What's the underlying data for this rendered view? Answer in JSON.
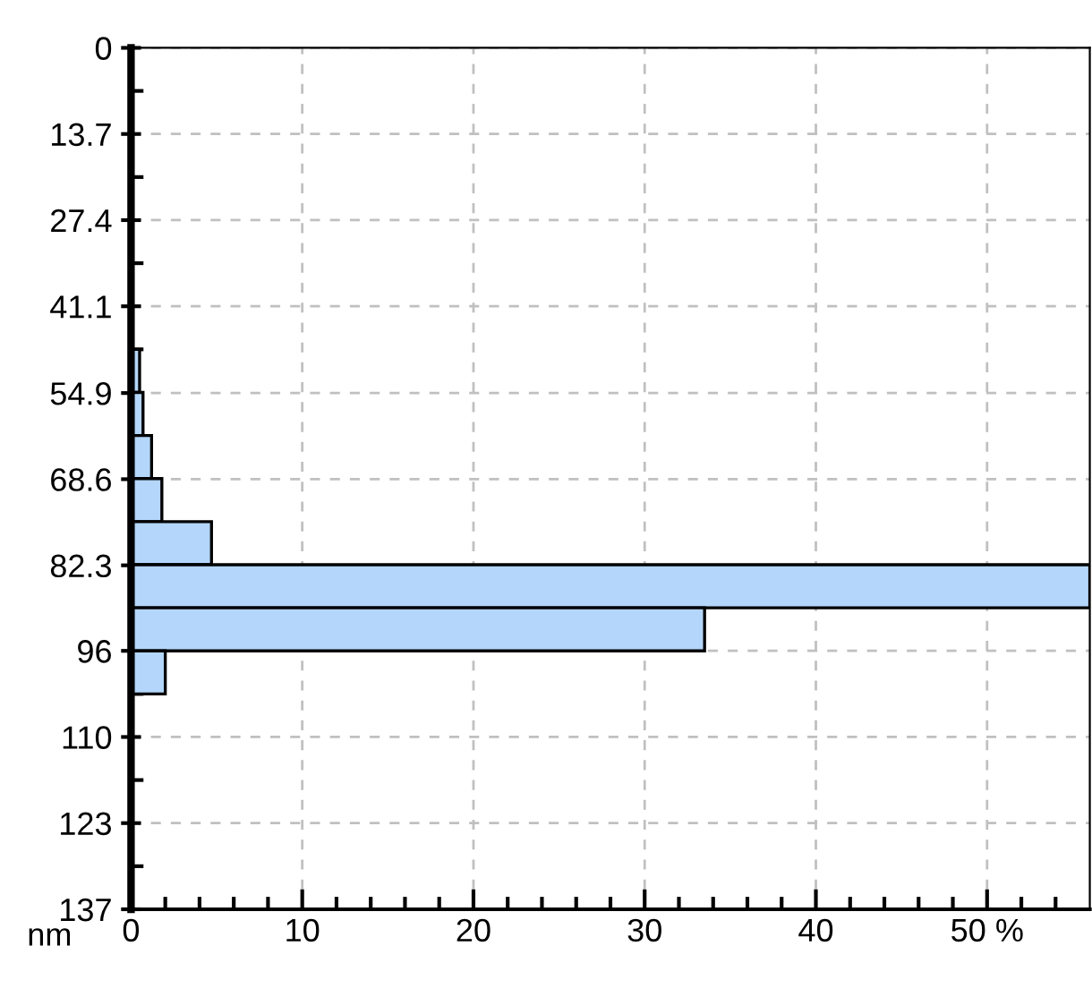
{
  "chart_data": {
    "type": "histogram",
    "orientation": "horizontal",
    "ylabel": "nm",
    "bins": [
      0,
      6.85,
      13.7,
      20.55,
      27.4,
      34.25,
      41.1,
      47.95,
      54.8,
      61.65,
      68.5,
      75.35,
      82.2,
      89.05,
      95.9,
      102.75,
      109.6,
      116.45,
      123.3,
      130.15,
      137
    ],
    "values": [
      null,
      null,
      null,
      null,
      null,
      null,
      null,
      0.5,
      0.7,
      1.2,
      1.8,
      4.7,
      56,
      33.5,
      2.0,
      null,
      null,
      null,
      null,
      null
    ],
    "color": "#b3d6fa",
    "xlim": [
      0,
      56
    ],
    "ylim": [
      137,
      0
    ],
    "xticks": [
      0,
      {
        "value": 2,
        "label": null
      },
      {
        "value": 4,
        "label": null
      },
      {
        "value": 6,
        "label": null
      },
      {
        "value": 8,
        "label": null
      },
      10,
      {
        "value": 12,
        "label": null
      },
      {
        "value": 14,
        "label": null
      },
      {
        "value": 16,
        "label": null
      },
      {
        "value": 18,
        "label": null
      },
      20,
      {
        "value": 22,
        "label": null
      },
      {
        "value": 24,
        "label": null
      },
      {
        "value": 26,
        "label": null
      },
      {
        "value": 28,
        "label": null
      },
      30,
      {
        "value": 32,
        "label": null
      },
      {
        "value": 34,
        "label": null
      },
      {
        "value": 36,
        "label": null
      },
      {
        "value": 38,
        "label": null
      },
      40,
      {
        "value": 42,
        "label": null
      },
      {
        "value": 44,
        "label": null
      },
      {
        "value": 46,
        "label": null
      },
      {
        "value": 48,
        "label": null
      },
      {
        "value": 50,
        "label": "50 %"
      },
      {
        "value": 52,
        "label": null
      },
      {
        "value": 54,
        "label": null
      }
    ],
    "yticks": [
      0,
      {
        "value": 6.85,
        "label": null
      },
      13.7,
      {
        "value": 20.55,
        "label": null
      },
      27.4,
      {
        "value": 34.25,
        "label": null
      },
      41.1,
      {
        "value": 47.95,
        "label": null
      },
      54.9,
      {
        "value": 61.65,
        "label": null
      },
      68.6,
      {
        "value": 75.35,
        "label": null
      },
      82.3,
      {
        "value": 89.05,
        "label": null
      },
      {
        "value": 95.9,
        "label": "96"
      },
      {
        "value": 102.75,
        "label": null
      },
      {
        "value": 109.6,
        "label": "110"
      },
      {
        "value": 116.45,
        "label": null
      },
      {
        "value": 123.3,
        "label": "123"
      },
      {
        "value": 130.15,
        "label": null
      },
      137
    ],
    "grid": true
  }
}
